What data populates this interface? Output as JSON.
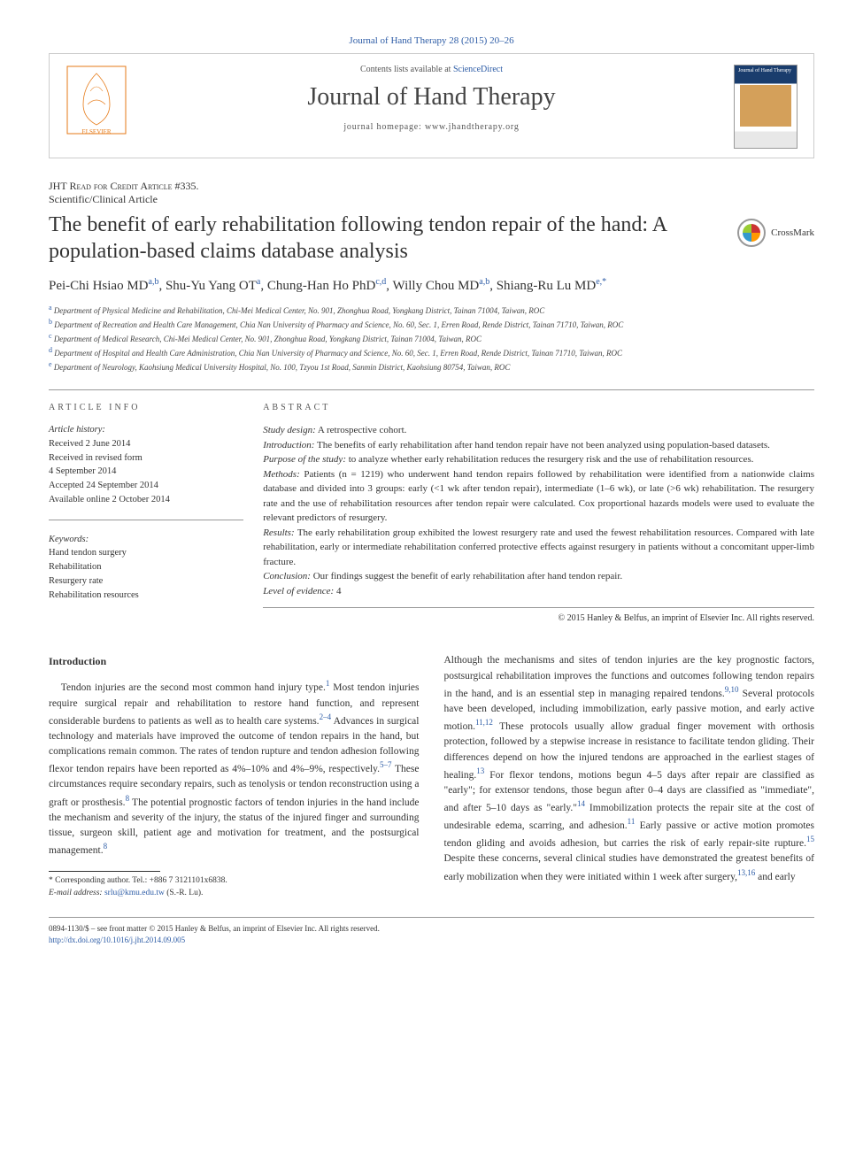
{
  "citation": "Journal of Hand Therapy 28 (2015) 20–26",
  "header": {
    "contents_prefix": "Contents lists available at ",
    "contents_link": "ScienceDirect",
    "journal": "Journal of Hand Therapy",
    "homepage_prefix": "journal homepage: ",
    "homepage": "www.jhandtherapy.org",
    "cover_label": "Journal of\nHand Therapy"
  },
  "article_type": "JHT Read for Credit Article #335.",
  "article_subtype": "Scientific/Clinical Article",
  "title": "The benefit of early rehabilitation following tendon repair of the hand: A population-based claims database analysis",
  "crossmark": "CrossMark",
  "authors_html": "Pei-Chi Hsiao MD|a,b|, Shu-Yu Yang OT|a|, Chung-Han Ho PhD|c,d|, Willy Chou MD|a,b|, Shiang-Ru Lu MD|e,*|",
  "affiliations": [
    {
      "lbl": "a",
      "text": "Department of Physical Medicine and Rehabilitation, Chi-Mei Medical Center, No. 901, Zhonghua Road, Yongkang District, Tainan 71004, Taiwan, ROC"
    },
    {
      "lbl": "b",
      "text": "Department of Recreation and Health Care Management, Chia Nan University of Pharmacy and Science, No. 60, Sec. 1, Erren Road, Rende District, Tainan 71710, Taiwan, ROC"
    },
    {
      "lbl": "c",
      "text": "Department of Medical Research, Chi-Mei Medical Center, No. 901, Zhonghua Road, Yongkang District, Tainan 71004, Taiwan, ROC"
    },
    {
      "lbl": "d",
      "text": "Department of Hospital and Health Care Administration, Chia Nan University of Pharmacy and Science, No. 60, Sec. 1, Erren Road, Rende District, Tainan 71710, Taiwan, ROC"
    },
    {
      "lbl": "e",
      "text": "Department of Neurology, Kaohsiung Medical University Hospital, No. 100, Tzyou 1st Road, Sanmin District, Kaohsiung 80754, Taiwan, ROC"
    }
  ],
  "info": {
    "heading": "article info",
    "history_label": "Article history:",
    "history": [
      "Received 2 June 2014",
      "Received in revised form",
      "4 September 2014",
      "Accepted 24 September 2014",
      "Available online 2 October 2014"
    ],
    "keywords_label": "Keywords:",
    "keywords": [
      "Hand tendon surgery",
      "Rehabilitation",
      "Resurgery rate",
      "Rehabilitation resources"
    ]
  },
  "abstract": {
    "heading": "abstract",
    "segments": [
      {
        "label": "Study design:",
        "text": " A retrospective cohort."
      },
      {
        "label": "Introduction:",
        "text": " The benefits of early rehabilitation after hand tendon repair have not been analyzed using population-based datasets."
      },
      {
        "label": "Purpose of the study:",
        "text": " to analyze whether early rehabilitation reduces the resurgery risk and the use of rehabilitation resources."
      },
      {
        "label": "Methods:",
        "text": " Patients (n = 1219) who underwent hand tendon repairs followed by rehabilitation were identified from a nationwide claims database and divided into 3 groups: early (<1 wk after tendon repair), intermediate (1–6 wk), or late (>6 wk) rehabilitation. The resurgery rate and the use of rehabilitation resources after tendon repair were calculated. Cox proportional hazards models were used to evaluate the relevant predictors of resurgery."
      },
      {
        "label": "Results:",
        "text": " The early rehabilitation group exhibited the lowest resurgery rate and used the fewest rehabilitation resources. Compared with late rehabilitation, early or intermediate rehabilitation conferred protective effects against resurgery in patients without a concomitant upper-limb fracture."
      },
      {
        "label": "Conclusion:",
        "text": " Our findings suggest the benefit of early rehabilitation after hand tendon repair."
      },
      {
        "label": "Level of evidence:",
        "text": " 4"
      }
    ],
    "copyright": "© 2015 Hanley & Belfus, an imprint of Elsevier Inc. All rights reserved."
  },
  "body": {
    "intro_heading": "Introduction",
    "p1": "Tendon injuries are the second most common hand injury type.|1| Most tendon injuries require surgical repair and rehabilitation to restore hand function, and represent considerable burdens to patients as well as to health care systems.|2–4| Advances in surgical technology and materials have improved the outcome of tendon repairs in the hand, but complications remain common. The rates of tendon rupture and tendon adhesion following flexor tendon repairs have been reported as 4%–10% and 4%–9%, respectively.|5–7| These circumstances require secondary repairs, such as tenolysis or tendon reconstruction using a graft or prosthesis.|8| The potential prognostic factors of tendon injuries in the hand include the mechanism and severity of the injury, the status of the injured finger and surrounding tissue, surgeon skill, patient age and motivation for treatment, and the postsurgical management.|8|",
    "p2": "Although the mechanisms and sites of tendon injuries are the key prognostic factors, postsurgical rehabilitation improves the functions and outcomes following tendon repairs in the hand, and is an essential step in managing repaired tendons.|9,10| Several protocols have been developed, including immobilization, early passive motion, and early active motion.|11,12| These protocols usually allow gradual finger movement with orthosis protection, followed by a stepwise increase in resistance to facilitate tendon gliding. Their differences depend on how the injured tendons are approached in the earliest stages of healing.|13| For flexor tendons, motions begun 4–5 days after repair are classified as \"early\"; for extensor tendons, those begun after 0–4 days are classified as \"immediate\", and after 5–10 days as \"early.\"|14| Immobilization protects the repair site at the cost of undesirable edema, scarring, and adhesion.|11| Early passive or active motion promotes tendon gliding and avoids adhesion, but carries the risk of early repair-site rupture.|15| Despite these concerns, several clinical studies have demonstrated the greatest benefits of early mobilization when they were initiated within 1 week after surgery,|13,16| and early"
  },
  "footnote": {
    "corr": "* Corresponding author. Tel.: +886 7 3121101x6838.",
    "email_label": "E-mail address:",
    "email": "srlu@kmu.edu.tw",
    "email_who": "(S.-R. Lu)."
  },
  "footer": {
    "line1": "0894-1130/$ – see front matter © 2015 Hanley & Belfus, an imprint of Elsevier Inc. All rights reserved.",
    "doi": "http://dx.doi.org/10.1016/j.jht.2014.09.005"
  },
  "colors": {
    "link": "#2d5ca6",
    "text": "#333333",
    "rule": "#999999"
  }
}
